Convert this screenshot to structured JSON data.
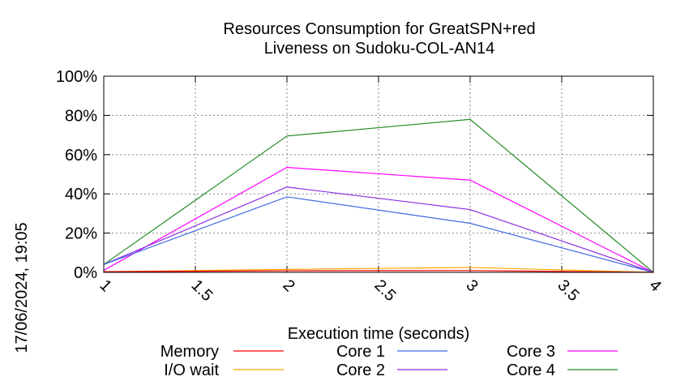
{
  "chart_data": {
    "type": "line",
    "title_line1": "Resources Consumption for GreatSPN+red",
    "title_line2": "Liveness on Sudoku-COL-AN14",
    "xlabel": "Execution time (seconds)",
    "ylabel": "",
    "side_label": "17/06/2024, 19:05",
    "xlim": [
      1,
      4
    ],
    "ylim": [
      0,
      100
    ],
    "x_ticks": [
      "1",
      "1.5",
      "2",
      "2.5",
      "3",
      "3.5",
      "4"
    ],
    "y_ticks": [
      "0%",
      "20%",
      "40%",
      "60%",
      "80%",
      "100%"
    ],
    "grid": true,
    "legend_position": "bottom",
    "x": [
      1,
      2,
      3,
      4
    ],
    "series": [
      {
        "name": "Memory",
        "color": "#ff0000",
        "values": [
          0.3,
          0.8,
          0.9,
          0
        ]
      },
      {
        "name": "I/O wait",
        "color": "#ffa500",
        "values": [
          0.3,
          1.5,
          2.5,
          0
        ]
      },
      {
        "name": "Core 1",
        "color": "#4169e1",
        "values": [
          4,
          38.5,
          25,
          0
        ]
      },
      {
        "name": "Core 2",
        "color": "#8a2be2",
        "values": [
          4,
          43.5,
          32,
          0
        ]
      },
      {
        "name": "Core 3",
        "color": "#ff00ff",
        "values": [
          1,
          53.5,
          47,
          0
        ]
      },
      {
        "name": "Core 4",
        "color": "#228b22",
        "values": [
          4,
          69.5,
          78,
          0
        ]
      }
    ]
  }
}
